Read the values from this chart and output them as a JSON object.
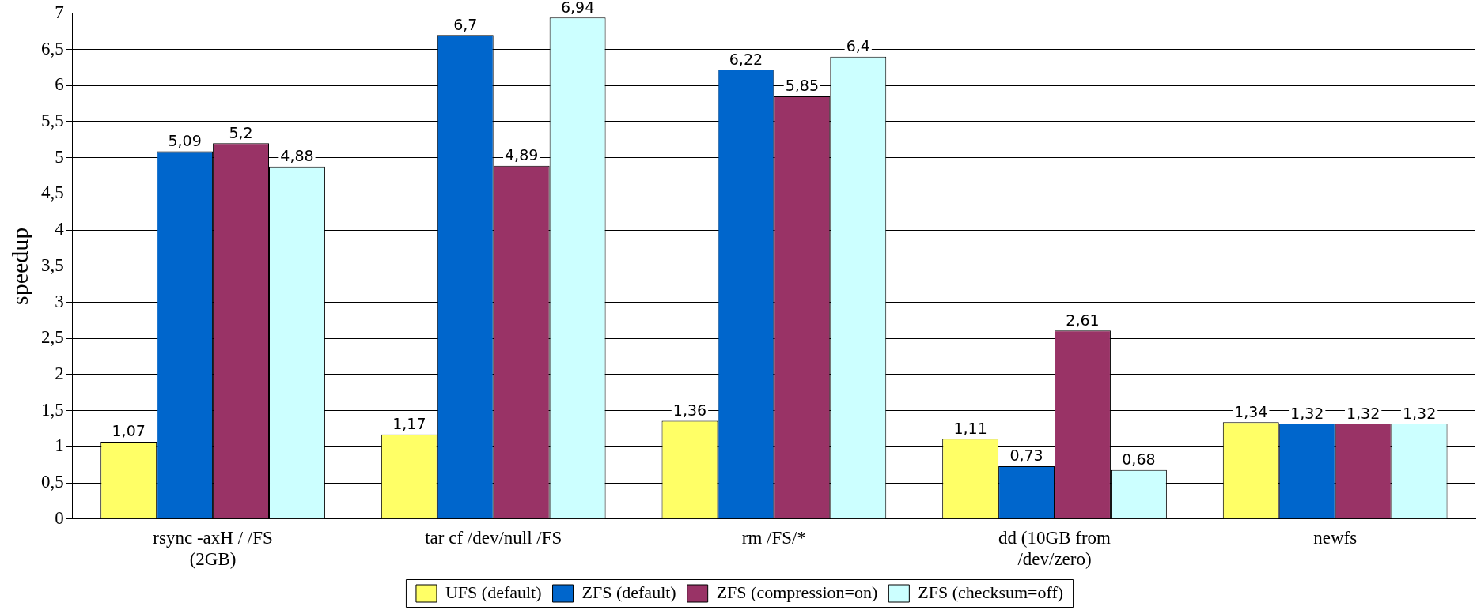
{
  "chart_data": {
    "type": "bar",
    "ylabel": "speedup",
    "categories": [
      "rsync -axH / /FS (2GB)",
      "tar cf /dev/null /FS",
      "rm /FS/*",
      "dd (10GB from /dev/zero)",
      "newfs"
    ],
    "series": [
      {
        "name": "UFS (default)",
        "color": "#ffff66",
        "values": [
          1.07,
          1.17,
          1.36,
          1.11,
          1.34
        ],
        "value_labels": [
          "1,07",
          "1,17",
          "1,36",
          "1,11",
          "1,34"
        ]
      },
      {
        "name": "ZFS (default)",
        "color": "#0066cc",
        "values": [
          5.09,
          6.7,
          6.22,
          0.73,
          1.32
        ],
        "value_labels": [
          "5,09",
          "6,7",
          "6,22",
          "0,73",
          "1,32"
        ]
      },
      {
        "name": "ZFS (compression=on)",
        "color": "#993366",
        "values": [
          5.2,
          4.89,
          5.85,
          2.61,
          1.32
        ],
        "value_labels": [
          "5,2",
          "4,89",
          "5,85",
          "2,61",
          "1,32"
        ]
      },
      {
        "name": "ZFS (checksum=off)",
        "color": "#ccffff",
        "values": [
          4.88,
          6.94,
          6.4,
          0.68,
          1.32
        ],
        "value_labels": [
          "4,88",
          "6,94",
          "6,4",
          "0,68",
          "1,32"
        ]
      }
    ],
    "ylim": [
      0,
      7
    ],
    "yticks": [
      0,
      {
        "value": 0.5,
        "label": "0,5"
      },
      1,
      {
        "value": 1.5,
        "label": "1,5"
      },
      2,
      {
        "value": 2.5,
        "label": "2,5"
      },
      3,
      {
        "value": 3.5,
        "label": "3,5"
      },
      4,
      {
        "value": 4.5,
        "label": "4,5"
      },
      5,
      {
        "value": 5.5,
        "label": "5,5"
      },
      6,
      {
        "value": 6.5,
        "label": "6,5"
      },
      7
    ],
    "grid": "y",
    "legend": "bottom"
  }
}
